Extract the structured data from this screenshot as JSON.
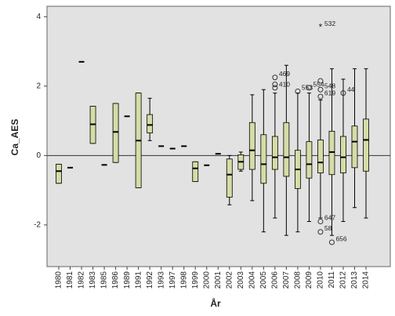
{
  "chart_data": {
    "type": "box",
    "x_label": "År",
    "y_label": "Ca_AES",
    "categories": [
      "1980",
      "1981",
      "1982",
      "1983",
      "1985",
      "1986",
      "1989",
      "1991",
      "1992",
      "1993",
      "1997",
      "1998",
      "1999",
      "2000",
      "2001",
      "2002",
      "2003",
      "2004",
      "2005",
      "2006",
      "2007",
      "2008",
      "2009",
      "2010",
      "2011",
      "2012",
      "2013",
      "2014"
    ],
    "boxes": [
      {
        "min": -0.8,
        "q1": -0.8,
        "median": -0.45,
        "q3": -0.25,
        "max": -0.25,
        "outliers": []
      },
      {
        "min": -0.35,
        "q1": -0.35,
        "median": -0.35,
        "q3": -0.35,
        "max": -0.35,
        "outliers": []
      },
      {
        "min": 2.7,
        "q1": 2.7,
        "median": 2.7,
        "q3": 2.7,
        "max": 2.7,
        "outliers": []
      },
      {
        "min": 0.35,
        "q1": 0.35,
        "median": 0.9,
        "q3": 1.42,
        "max": 1.42,
        "outliers": []
      },
      {
        "min": -0.27,
        "q1": -0.27,
        "median": -0.27,
        "q3": -0.27,
        "max": -0.27,
        "outliers": []
      },
      {
        "min": -0.2,
        "q1": -0.2,
        "median": 0.68,
        "q3": 1.5,
        "max": 1.5,
        "outliers": []
      },
      {
        "min": 1.13,
        "q1": 1.13,
        "median": 1.13,
        "q3": 1.13,
        "max": 1.13,
        "outliers": []
      },
      {
        "min": -0.93,
        "q1": -0.93,
        "median": 0.43,
        "q3": 1.8,
        "max": 1.8,
        "outliers": []
      },
      {
        "min": 0.43,
        "q1": 0.65,
        "median": 0.88,
        "q3": 1.18,
        "max": 1.65,
        "outliers": []
      },
      {
        "min": 0.27,
        "q1": 0.27,
        "median": 0.27,
        "q3": 0.27,
        "max": 0.27,
        "outliers": []
      },
      {
        "min": 0.2,
        "q1": 0.2,
        "median": 0.2,
        "q3": 0.2,
        "max": 0.2,
        "outliers": []
      },
      {
        "min": 0.27,
        "q1": 0.27,
        "median": 0.27,
        "q3": 0.27,
        "max": 0.27,
        "outliers": []
      },
      {
        "min": -0.75,
        "q1": -0.75,
        "median": -0.37,
        "q3": -0.18,
        "max": -0.18,
        "outliers": []
      },
      {
        "min": -0.28,
        "q1": -0.28,
        "median": -0.28,
        "q3": -0.28,
        "max": -0.28,
        "outliers": []
      },
      {
        "min": 0.05,
        "q1": 0.05,
        "median": 0.05,
        "q3": 0.05,
        "max": 0.05,
        "outliers": []
      },
      {
        "min": -1.42,
        "q1": -1.2,
        "median": -0.55,
        "q3": -0.1,
        "max": 0,
        "outliers": []
      },
      {
        "min": -0.45,
        "q1": -0.4,
        "median": -0.18,
        "q3": 0.02,
        "max": 0.1,
        "outliers": []
      },
      {
        "min": -1.3,
        "q1": -0.4,
        "median": 0.15,
        "q3": 0.95,
        "max": 1.75,
        "outliers": []
      },
      {
        "min": -2.2,
        "q1": -0.8,
        "median": -0.25,
        "q3": 0.6,
        "max": 1.9,
        "outliers": []
      },
      {
        "min": -1.8,
        "q1": -0.4,
        "median": -0.05,
        "q3": 0.55,
        "max": 1.8,
        "outliers": [
          {
            "value": 2.25,
            "label": "469"
          },
          {
            "value": 2.05
          },
          {
            "value": 1.95,
            "label": "410"
          }
        ]
      },
      {
        "min": -2.3,
        "q1": -0.6,
        "median": -0.05,
        "q3": 0.95,
        "max": 2.6,
        "outliers": []
      },
      {
        "min": -2.2,
        "q1": -0.95,
        "median": -0.4,
        "q3": 0.15,
        "max": 1.8,
        "outliers": [
          {
            "value": 1.85,
            "label": "553"
          }
        ]
      },
      {
        "min": -1.9,
        "q1": -0.65,
        "median": -0.25,
        "q3": 0.4,
        "max": 1.8,
        "outliers": [
          {
            "value": 1.95,
            "label": "554"
          }
        ]
      },
      {
        "min": -1.8,
        "q1": -0.5,
        "median": -0.2,
        "q3": 0.45,
        "max": 1.6,
        "outliers": [
          {
            "value": 3.7,
            "label": "532",
            "marker": "star"
          },
          {
            "value": 2.15
          },
          {
            "value": 1.9,
            "label": "548"
          },
          {
            "value": 1.7,
            "label": "619"
          },
          {
            "value": -1.9,
            "label": "647"
          },
          {
            "value": -2.2,
            "label": "58"
          }
        ]
      },
      {
        "min": -2.3,
        "q1": -0.55,
        "median": 0.1,
        "q3": 0.7,
        "max": 2.5,
        "outliers": [
          {
            "value": -2.5,
            "label": "656"
          }
        ]
      },
      {
        "min": -1.9,
        "q1": -0.5,
        "median": -0.05,
        "q3": 0.55,
        "max": 2.2,
        "outliers": [
          {
            "value": 1.8,
            "label": "44"
          }
        ]
      },
      {
        "min": -1.5,
        "q1": -0.35,
        "median": 0.4,
        "q3": 0.85,
        "max": 2.5,
        "outliers": []
      },
      {
        "min": -1.8,
        "q1": -0.45,
        "median": 0.45,
        "q3": 1.05,
        "max": 2.5,
        "outliers": []
      }
    ],
    "color": "#d6dca6",
    "reference_line": 0,
    "ylim": [
      -3.2,
      4.3
    ],
    "yticks": [
      -2,
      0,
      2,
      4
    ]
  }
}
